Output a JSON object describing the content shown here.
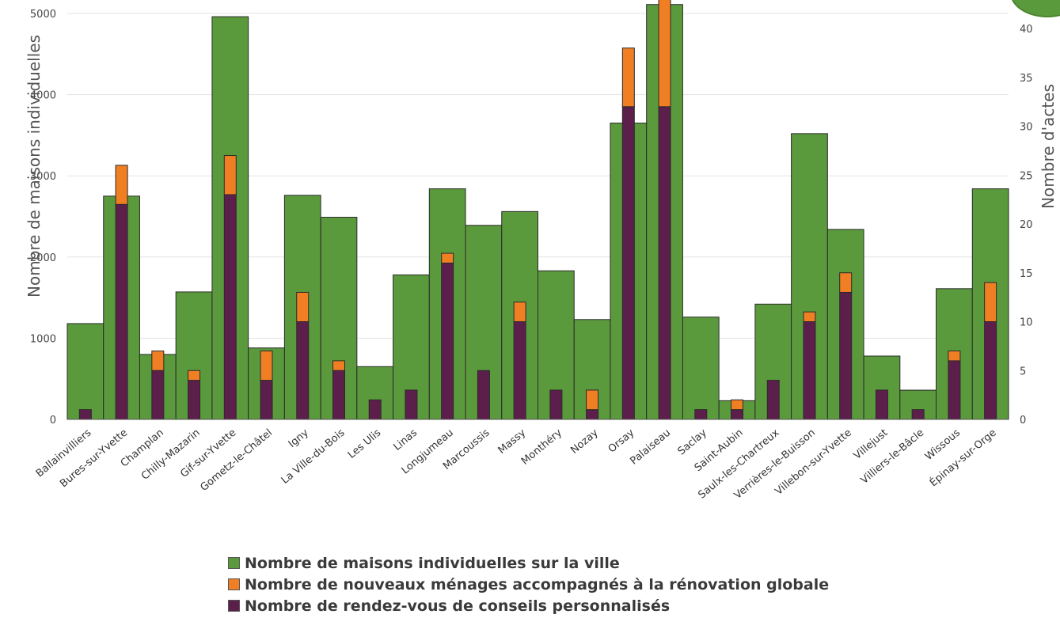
{
  "colors": {
    "houses": "#5b9a3c",
    "renovation": "#f07f24",
    "appointments": "#5c1f4b",
    "grid": "#e3e3e3",
    "border": "#2a2a2a"
  },
  "legend": [
    {
      "label": "Nombre de maisons individuelles sur la ville",
      "color": "#5b9a3c"
    },
    {
      "label": "Nombre de nouveaux ménages accompagnés à la rénovation globale",
      "color": "#f07f24"
    },
    {
      "label": "Nombre de rendez-vous de conseils personnalisés",
      "color": "#5c1f4b"
    }
  ],
  "chart_data": {
    "type": "bar",
    "ylabel": "Nombre de maisons individuelles",
    "y2label": "Nombre d'actes",
    "ylim": [
      0,
      5000
    ],
    "y2lim": [
      0,
      42.5
    ],
    "yticks": [
      0,
      1000,
      2000,
      3000,
      4000,
      5000
    ],
    "y2ticks": [
      0,
      5,
      10,
      15,
      20,
      25,
      30,
      35,
      40
    ],
    "categories": [
      "Ballainvilliers",
      "Bures-sur-Yvette",
      "Champlan",
      "Chilly-Mazarin",
      "Gif-sur-Yvette",
      "Gometz-le-Châtel",
      "Igny",
      "La Ville-du-Bois",
      "Les Ulis",
      "Linas",
      "Longjumeau",
      "Marcoussis",
      "Massy",
      "Monthéry",
      "Nozay",
      "Orsay",
      "Palaiseau",
      "Saclay",
      "Saint-Aubin",
      "Saulx-les-Chartreux",
      "Verrières-le-Buisson",
      "Villebon-sur-Yvette",
      "Villejust",
      "Villiers-le-Bâcle",
      "Wissous",
      "Épinay-sur-Orge"
    ],
    "series": [
      {
        "name": "Nombre de maisons individuelles sur la ville",
        "axis": "left",
        "values": [
          1180,
          2750,
          800,
          1570,
          4960,
          880,
          2760,
          2490,
          650,
          1780,
          2840,
          2390,
          2560,
          1830,
          1230,
          3650,
          5110,
          1260,
          230,
          1420,
          3520,
          2340,
          780,
          360,
          1610,
          2840
        ]
      },
      {
        "name": "Nombre de rendez-vous de conseils personnalisés",
        "axis": "right",
        "values": [
          1,
          22,
          5,
          4,
          23,
          4,
          10,
          5,
          2,
          3,
          16,
          5,
          10,
          3,
          1,
          32,
          32,
          1,
          1,
          4,
          10,
          13,
          3,
          1,
          6,
          10
        ]
      },
      {
        "name": "Nombre de nouveaux ménages accompagnés à la rénovation globale",
        "axis": "right",
        "stacked_on": "Nombre de rendez-vous de conseils personnalisés",
        "values": [
          0,
          4,
          2,
          1,
          4,
          3,
          3,
          1,
          0,
          0,
          1,
          0,
          2,
          0,
          2,
          6,
          12,
          0,
          1,
          0,
          1,
          2,
          0,
          0,
          1,
          4
        ]
      }
    ]
  }
}
